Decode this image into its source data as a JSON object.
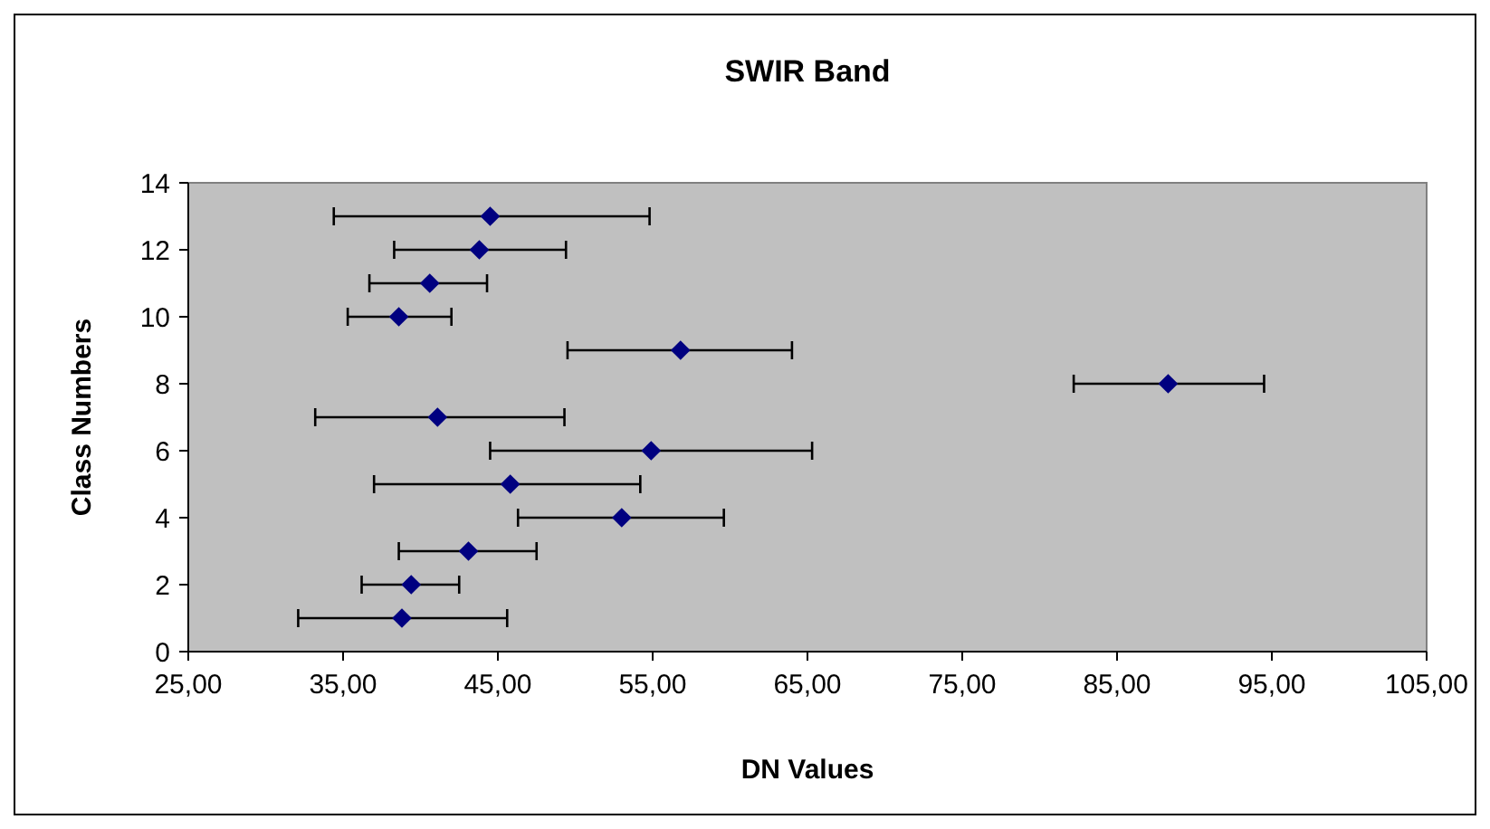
{
  "chart_data": {
    "type": "scatter",
    "title": "SWIR Band",
    "xlabel": "DN Values",
    "ylabel": "Class Numbers",
    "x": [
      38.8,
      39.4,
      43.1,
      53.0,
      45.8,
      54.9,
      41.1,
      88.3,
      56.8,
      38.6,
      40.6,
      43.8,
      44.5
    ],
    "series": [
      {
        "color": "#000080",
        "values": [
          1,
          2,
          3,
          4,
          5,
          6,
          7,
          8,
          9,
          10,
          11,
          12,
          13
        ],
        "xerrors": [
          [
            32.1,
            45.6
          ],
          [
            36.2,
            42.5
          ],
          [
            38.6,
            47.5
          ],
          [
            46.3,
            59.6
          ],
          [
            37.0,
            54.2
          ],
          [
            44.5,
            65.3
          ],
          [
            33.2,
            49.3
          ],
          [
            82.2,
            94.5
          ],
          [
            49.5,
            64.0
          ],
          [
            35.3,
            42.0
          ],
          [
            36.7,
            44.3
          ],
          [
            38.3,
            49.4
          ],
          [
            34.4,
            54.8
          ]
        ]
      }
    ],
    "xlim": [
      25,
      105
    ],
    "xticks": [
      {
        "value": 25,
        "label": "25,00"
      },
      {
        "value": 35,
        "label": "35,00"
      },
      {
        "value": 45,
        "label": "45,00"
      },
      {
        "value": 55,
        "label": "55,00"
      },
      {
        "value": 65,
        "label": "65,00"
      },
      {
        "value": 75,
        "label": "75,00"
      },
      {
        "value": 85,
        "label": "85,00"
      },
      {
        "value": 95,
        "label": "95,00"
      },
      {
        "value": 105,
        "label": "105,00"
      }
    ],
    "ylim": [
      0,
      14
    ],
    "yticks": [
      0,
      2,
      4,
      6,
      8,
      10,
      12,
      14
    ],
    "marker": "diamond",
    "grid": false
  }
}
